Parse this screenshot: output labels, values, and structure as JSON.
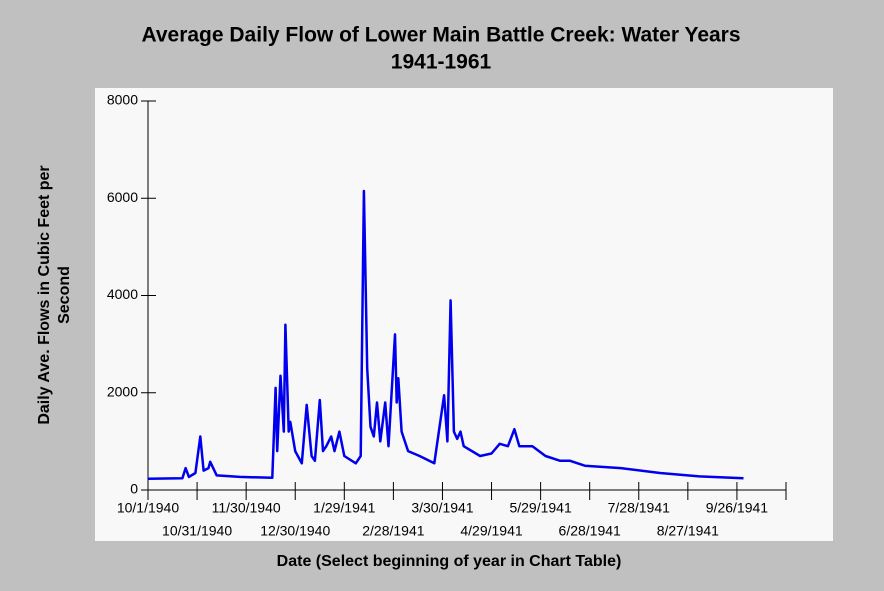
{
  "chart_data": {
    "type": "line",
    "title": [
      "Average Daily Flow of Lower Main Battle Creek: Water Years",
      "1941-1961"
    ],
    "ylabel": [
      "Daily Ave. Flows in Cubic Feet per",
      "Second"
    ],
    "xlabel": "Date (Select beginning of year in Chart Table)",
    "xlim": [
      "10/1/1940",
      "10/26/1941"
    ],
    "xticks": [
      "10/1/1940",
      "10/31/1940",
      "11/30/1940",
      "12/30/1940",
      "1/29/1941",
      "2/28/1941",
      "3/30/1941",
      "4/29/1941",
      "5/29/1941",
      "6/28/1941",
      "7/28/1941",
      "8/27/1941",
      "9/26/1941"
    ],
    "ylim": [
      0,
      8000
    ],
    "yticks": [
      0,
      2000,
      4000,
      6000,
      8000
    ],
    "x": [
      "10/1/1940",
      "10/22/1940",
      "10/24/1940",
      "10/26/1940",
      "10/30/1940",
      "11/2/1940",
      "11/4/1940",
      "11/7/1940",
      "11/8/1940",
      "11/12/1940",
      "11/26/1940",
      "12/16/1940",
      "12/18/1940",
      "12/19/1940",
      "12/21/1940",
      "12/23/1940",
      "12/24/1940",
      "12/26/1940",
      "12/27/1940",
      "12/30/1940",
      "1/3/1941",
      "1/6/1941",
      "1/9/1941",
      "1/11/1941",
      "1/14/1941",
      "1/16/1941",
      "1/18/1941",
      "1/21/1941",
      "1/23/1941",
      "1/26/1941",
      "1/29/1941",
      "2/5/1941",
      "2/8/1941",
      "2/10/1941",
      "2/12/1941",
      "2/14/1941",
      "2/16/1941",
      "2/18/1941",
      "2/20/1941",
      "2/23/1941",
      "2/25/1941",
      "3/1/1941",
      "3/2/1941",
      "3/3/1941",
      "3/5/1941",
      "3/9/1941",
      "3/16/1941",
      "3/25/1941",
      "3/31/1941",
      "4/2/1941",
      "4/4/1941",
      "4/6/1941",
      "4/8/1941",
      "4/10/1941",
      "4/12/1941",
      "4/22/1941",
      "4/29/1941",
      "5/4/1941",
      "5/9/1941",
      "5/13/1941",
      "5/16/1941",
      "5/24/1941",
      "6/1/1941",
      "6/10/1941",
      "6/16/1941",
      "6/25/1941",
      "7/17/1941",
      "8/10/1941",
      "9/3/1941",
      "9/30/1941"
    ],
    "series": [
      {
        "color": "#0000ee",
        "values": [
          230,
          240,
          450,
          270,
          350,
          1100,
          400,
          450,
          580,
          300,
          270,
          250,
          2100,
          800,
          2350,
          1200,
          3400,
          1200,
          1400,
          800,
          550,
          1750,
          700,
          600,
          1850,
          800,
          900,
          1100,
          800,
          1200,
          700,
          550,
          700,
          6150,
          2500,
          1300,
          1100,
          1800,
          1000,
          1800,
          900,
          3200,
          1800,
          2300,
          1200,
          800,
          700,
          550,
          1950,
          1000,
          3900,
          1200,
          1050,
          1200,
          900,
          700,
          750,
          950,
          900,
          1250,
          900,
          900,
          700,
          600,
          600,
          500,
          450,
          350,
          280,
          240
        ]
      }
    ]
  }
}
